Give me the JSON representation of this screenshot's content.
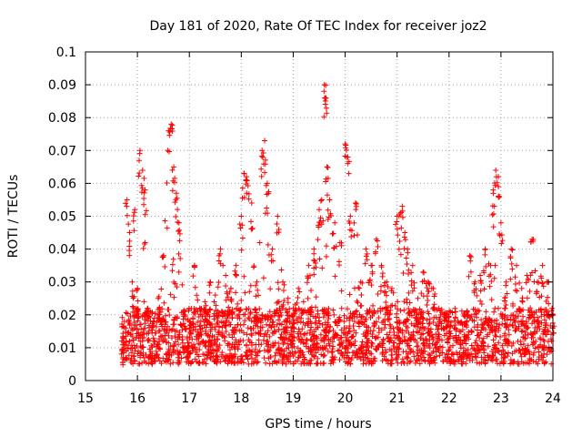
{
  "chart_data": {
    "type": "scatter",
    "title": "Day 181 of 2020, Rate Of TEC Index for receiver joz2",
    "xlabel": "GPS time / hours",
    "ylabel": "ROTI / TECUs",
    "xlim": [
      15,
      24
    ],
    "ylim": [
      0,
      0.1
    ],
    "xticks": [
      15,
      16,
      17,
      18,
      19,
      20,
      21,
      22,
      23,
      24
    ],
    "xtick_labels": [
      "15",
      "16",
      "17",
      "18",
      "19",
      "20",
      "21",
      "22",
      "23",
      "24"
    ],
    "yticks": [
      0,
      0.01,
      0.02,
      0.03,
      0.04,
      0.05,
      0.06,
      0.07,
      0.08,
      0.09,
      0.1
    ],
    "ytick_labels": [
      "0",
      "0.01",
      "0.02",
      "0.03",
      "0.04",
      "0.05",
      "0.06",
      "0.07",
      "0.08",
      "0.09",
      "0.1"
    ],
    "grid": true,
    "marker": "+",
    "color": "#ff0000",
    "series": [
      {
        "name": "ROTI",
        "x": [
          15.7,
          15.75,
          15.8,
          15.85,
          15.9,
          15.95,
          16.0,
          16.05,
          16.1,
          16.15,
          16.2,
          16.3,
          16.4,
          16.5,
          16.6,
          16.65,
          16.7,
          16.75,
          16.8,
          16.9,
          17.0,
          17.1,
          17.2,
          17.3,
          17.4,
          17.5,
          17.6,
          17.7,
          17.8,
          17.9,
          18.0,
          18.05,
          18.1,
          18.2,
          18.3,
          18.4,
          18.45,
          18.5,
          18.6,
          18.7,
          18.8,
          18.9,
          19.0,
          19.1,
          19.2,
          19.3,
          19.4,
          19.5,
          19.55,
          19.6,
          19.62,
          19.65,
          19.7,
          19.8,
          19.9,
          20.0,
          20.05,
          20.1,
          20.2,
          20.3,
          20.4,
          20.5,
          20.6,
          20.7,
          20.8,
          20.9,
          21.0,
          21.1,
          21.15,
          21.2,
          21.3,
          21.4,
          21.5,
          21.6,
          21.7,
          21.8,
          21.9,
          22.0,
          22.1,
          22.2,
          22.3,
          22.4,
          22.5,
          22.6,
          22.7,
          22.8,
          22.85,
          22.9,
          22.95,
          23.0,
          23.1,
          23.2,
          23.3,
          23.4,
          23.5,
          23.6,
          23.7,
          23.8,
          23.9,
          24.0
        ],
        "y": [
          0.012,
          0.018,
          0.055,
          0.045,
          0.03,
          0.052,
          0.028,
          0.07,
          0.064,
          0.058,
          0.022,
          0.018,
          0.025,
          0.038,
          0.076,
          0.078,
          0.065,
          0.057,
          0.048,
          0.02,
          0.018,
          0.035,
          0.022,
          0.024,
          0.03,
          0.026,
          0.04,
          0.032,
          0.028,
          0.035,
          0.05,
          0.063,
          0.062,
          0.054,
          0.03,
          0.07,
          0.073,
          0.06,
          0.04,
          0.05,
          0.03,
          0.025,
          0.022,
          0.028,
          0.024,
          0.035,
          0.04,
          0.052,
          0.055,
          0.09,
          0.086,
          0.065,
          0.055,
          0.048,
          0.042,
          0.072,
          0.068,
          0.05,
          0.054,
          0.03,
          0.04,
          0.035,
          0.043,
          0.035,
          0.03,
          0.028,
          0.05,
          0.053,
          0.045,
          0.04,
          0.035,
          0.025,
          0.033,
          0.03,
          0.028,
          0.022,
          0.02,
          0.018,
          0.016,
          0.015,
          0.02,
          0.038,
          0.03,
          0.032,
          0.04,
          0.035,
          0.058,
          0.064,
          0.062,
          0.048,
          0.03,
          0.04,
          0.035,
          0.028,
          0.032,
          0.043,
          0.03,
          0.035,
          0.03,
          0.02
        ]
      }
    ],
    "background_band": {
      "x_start": 15.7,
      "x_end": 24.0,
      "y_floor": 0.005,
      "y_ceiling": 0.022,
      "note": "dense background of ROTI values between ~0.005 and ~0.025 across the observed interval"
    }
  }
}
